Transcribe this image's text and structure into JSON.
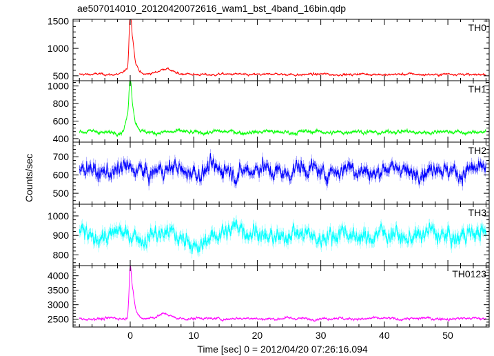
{
  "title": "ae507014010_20120420072616_wam1_bst_4band_16bin.qdp",
  "xlabel": "Time [sec] 0 = 2012/04/20 07:26:16.094",
  "ylabel": "Counts/sec",
  "chart_data": [
    {
      "type": "line",
      "name": "TH0",
      "color": "#ff0000",
      "xlim": [
        -9,
        56.5
      ],
      "ylim": [
        410,
        1530
      ],
      "yticks": [
        500,
        1000,
        1500
      ],
      "ytick_labels": [
        "500",
        "1000",
        "1500"
      ],
      "baseline": 525,
      "noise": 20,
      "features": [
        [
          0.0,
          1000,
          0.25
        ],
        [
          0.4,
          480,
          0.3
        ],
        [
          0.9,
          150,
          0.6
        ],
        [
          5.5,
          110,
          1.5
        ],
        [
          -0.5,
          90,
          0.8
        ]
      ]
    },
    {
      "type": "line",
      "name": "TH1",
      "color": "#00ff00",
      "xlim": [
        -9,
        56.5
      ],
      "ylim": [
        360,
        1060
      ],
      "yticks": [
        400,
        600,
        800,
        1000
      ],
      "ytick_labels": [
        "400",
        "600",
        "800",
        "1000"
      ],
      "baseline": 475,
      "noise": 22,
      "features": [
        [
          0.0,
          500,
          0.25
        ],
        [
          0.4,
          220,
          0.3
        ],
        [
          -0.4,
          160,
          0.5
        ],
        [
          0.9,
          80,
          0.6
        ]
      ]
    },
    {
      "type": "line",
      "name": "TH2",
      "color": "#0000ff",
      "xlim": [
        -9,
        56.5
      ],
      "ylim": [
        440,
        780
      ],
      "yticks": [
        500,
        600,
        700
      ],
      "ytick_labels": [
        "500",
        "600",
        "700"
      ],
      "baseline": 625,
      "noise": 45,
      "features": []
    },
    {
      "type": "line",
      "name": "TH3",
      "color": "#00ffff",
      "xlim": [
        -9,
        56.5
      ],
      "ylim": [
        745,
        1060
      ],
      "yticks": [
        800,
        900,
        1000
      ],
      "ytick_labels": [
        "800",
        "900",
        "1000"
      ],
      "baseline": 900,
      "noise": 45,
      "features": [
        [
          11,
          -70,
          1.5
        ],
        [
          16.5,
          60,
          1.5
        ]
      ]
    },
    {
      "type": "line",
      "name": "TH0123",
      "color": "#ff00ff",
      "xlim": [
        -9,
        56.5
      ],
      "ylim": [
        2230,
        4350
      ],
      "yticks": [
        2500,
        3000,
        3500,
        4000
      ],
      "ytick_labels": [
        "2500",
        "3000",
        "3500",
        "4000"
      ],
      "baseline": 2520,
      "noise": 45,
      "features": [
        [
          0.0,
          1700,
          0.25
        ],
        [
          0.4,
          800,
          0.3
        ],
        [
          0.9,
          250,
          0.6
        ],
        [
          5.5,
          150,
          1.5
        ]
      ]
    }
  ],
  "xaxis": {
    "ticks": [
      0,
      10,
      20,
      30,
      40,
      50
    ],
    "tick_labels": [
      "0",
      "10",
      "20",
      "30",
      "40",
      "50"
    ],
    "minor_step": 2
  }
}
